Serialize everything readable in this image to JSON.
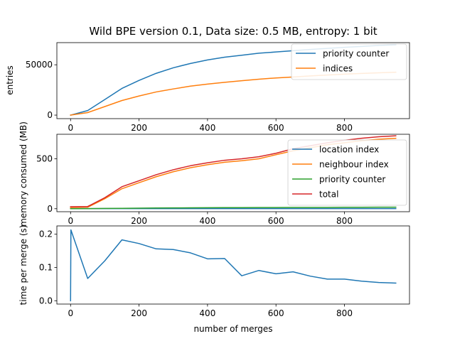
{
  "figure": {
    "title": "Wild BPE version 0.1, Data size: 0.5 MB, entropy: 1 bit",
    "xlabel": "number of merges"
  },
  "chart_data": [
    {
      "type": "line",
      "ylabel": "entries",
      "xlim": [
        -40,
        990
      ],
      "ylim": [
        -3500,
        72000
      ],
      "xticks": [
        0,
        200,
        400,
        600,
        800
      ],
      "yticks": [
        0,
        50000
      ],
      "legend": "top-right",
      "grid": false,
      "x": [
        0,
        50,
        100,
        150,
        200,
        250,
        300,
        350,
        400,
        450,
        500,
        550,
        600,
        650,
        700,
        750,
        800,
        850,
        900,
        950
      ],
      "series": [
        {
          "name": "priority counter",
          "color": "#1f77b4",
          "values": [
            0,
            4500,
            15500,
            26500,
            34500,
            41500,
            47000,
            51300,
            54800,
            57500,
            59500,
            61500,
            62700,
            64000,
            65200,
            66300,
            67300,
            68200,
            69200,
            69900
          ]
        },
        {
          "name": "indices",
          "color": "#ff7f0e",
          "values": [
            0,
            2500,
            8500,
            14500,
            19000,
            23000,
            26000,
            28800,
            30800,
            32600,
            34200,
            35700,
            36900,
            37900,
            38900,
            39800,
            40700,
            41400,
            42000,
            42600
          ]
        }
      ]
    },
    {
      "type": "line",
      "ylabel": "memory consumed (MB)",
      "xlim": [
        -40,
        990
      ],
      "ylim": [
        -30,
        745
      ],
      "xticks": [
        0,
        200,
        400,
        600,
        800
      ],
      "yticks": [
        0,
        500
      ],
      "legend": "top-right",
      "grid": false,
      "x": [
        0,
        50,
        100,
        150,
        200,
        250,
        300,
        350,
        400,
        450,
        500,
        550,
        600,
        650,
        700,
        750,
        800,
        850,
        900,
        950
      ],
      "series": [
        {
          "name": "location index",
          "color": "#1f77b4",
          "values": [
            1,
            1,
            1,
            1,
            1,
            1,
            1,
            1,
            1,
            1,
            1,
            1,
            1,
            1,
            1,
            1,
            1,
            1,
            1,
            1
          ]
        },
        {
          "name": "neighbour index",
          "color": "#ff7f0e",
          "values": [
            12,
            15,
            100,
            200,
            260,
            320,
            370,
            410,
            440,
            465,
            480,
            500,
            540,
            580,
            610,
            640,
            660,
            680,
            695,
            705
          ]
        },
        {
          "name": "priority counter",
          "color": "#2ca02c",
          "values": [
            0,
            1,
            3,
            4,
            6,
            7,
            8,
            9,
            10,
            11,
            11,
            12,
            12,
            13,
            13,
            13,
            14,
            14,
            15,
            15
          ]
        },
        {
          "name": "total",
          "color": "#d62728",
          "values": [
            20,
            22,
            110,
            220,
            280,
            340,
            390,
            430,
            460,
            485,
            500,
            520,
            555,
            600,
            630,
            660,
            685,
            705,
            720,
            730
          ]
        }
      ]
    },
    {
      "type": "line",
      "ylabel": "time per merge (s)",
      "xlim": [
        -40,
        990
      ],
      "ylim": [
        -0.01,
        0.225
      ],
      "xticks": [
        0,
        200,
        400,
        600,
        800
      ],
      "yticks": [
        0.0,
        0.1,
        0.2
      ],
      "grid": false,
      "x": [
        0,
        1,
        50,
        100,
        150,
        200,
        250,
        300,
        350,
        400,
        450,
        500,
        550,
        600,
        650,
        700,
        750,
        800,
        850,
        900,
        950
      ],
      "series": [
        {
          "color": "#1f77b4",
          "values": [
            0.0,
            0.213,
            0.067,
            0.12,
            0.183,
            0.172,
            0.156,
            0.154,
            0.144,
            0.126,
            0.127,
            0.075,
            0.091,
            0.081,
            0.087,
            0.074,
            0.065,
            0.065,
            0.059,
            0.055,
            0.053
          ]
        }
      ]
    }
  ]
}
